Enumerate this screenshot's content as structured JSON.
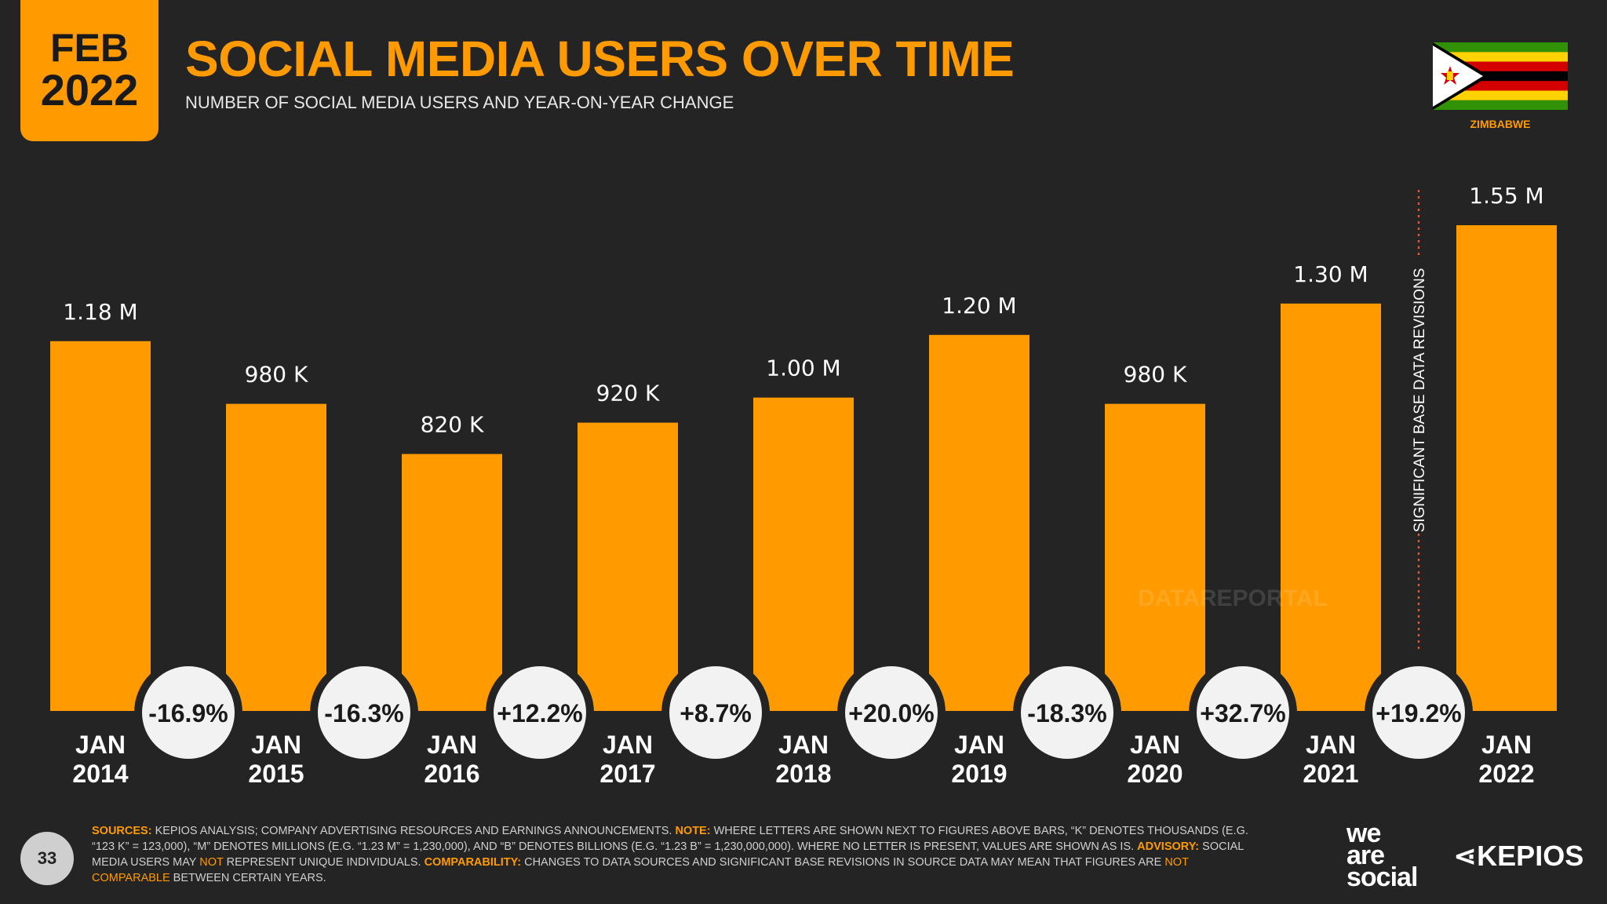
{
  "header": {
    "month": "FEB",
    "year": "2022",
    "title": "SOCIAL MEDIA USERS OVER TIME",
    "subtitle": "NUMBER OF SOCIAL MEDIA USERS AND YEAR-ON-YEAR CHANGE",
    "country": "ZIMBABWE"
  },
  "colors": {
    "accent": "#FF9A00",
    "background": "#242424",
    "bubble": "#F2F2F2"
  },
  "chart_data": {
    "type": "bar",
    "title": "SOCIAL MEDIA USERS OVER TIME",
    "subtitle": "NUMBER OF SOCIAL MEDIA USERS AND YEAR-ON-YEAR CHANGE",
    "categories": [
      {
        "month": "JAN",
        "year": "2014"
      },
      {
        "month": "JAN",
        "year": "2015"
      },
      {
        "month": "JAN",
        "year": "2016"
      },
      {
        "month": "JAN",
        "year": "2017"
      },
      {
        "month": "JAN",
        "year": "2018"
      },
      {
        "month": "JAN",
        "year": "2019"
      },
      {
        "month": "JAN",
        "year": "2020"
      },
      {
        "month": "JAN",
        "year": "2021"
      },
      {
        "month": "JAN",
        "year": "2022"
      }
    ],
    "values": [
      1180000,
      980000,
      820000,
      920000,
      1000000,
      1200000,
      980000,
      1300000,
      1550000
    ],
    "value_labels": [
      "1.18 M",
      "980 K",
      "820 K",
      "920 K",
      "1.00 M",
      "1.20 M",
      "980 K",
      "1.30 M",
      "1.55 M"
    ],
    "yoy_changes": [
      "-16.9%",
      "-16.3%",
      "+12.2%",
      "+8.7%",
      "+20.0%",
      "-18.3%",
      "+32.7%",
      "+19.2%"
    ],
    "ylim": [
      0,
      1550000
    ],
    "revision_annotation": {
      "after_index": 7,
      "label": "SIGNIFICANT BASE DATA REVISIONS"
    },
    "watermark": "DATAREPORTAL"
  },
  "footer": {
    "page_number": "33",
    "sources_label": "SOURCES:",
    "sources_text": " KEPIOS ANALYSIS; COMPANY ADVERTISING RESOURCES AND EARNINGS ANNOUNCEMENTS. ",
    "note_label": "NOTE:",
    "note_text": " WHERE LETTERS ARE SHOWN NEXT TO FIGURES ABOVE BARS, “K” DENOTES THOUSANDS (E.G. “123 K” = 123,000), “M” DENOTES MILLIONS (E.G. “1.23 M” = 1,230,000), AND “B” DENOTES BILLIONS (E.G. “1.23 B” = 1,230,000,000). WHERE NO LETTER IS PRESENT, VALUES ARE SHOWN AS IS. ",
    "advisory_label": "ADVISORY:",
    "advisory_text_1": " SOCIAL MEDIA USERS MAY ",
    "advisory_not": "NOT",
    "advisory_text_2": " REPRESENT UNIQUE INDIVIDUALS. ",
    "comparability_label": "COMPARABILITY:",
    "comparability_text": " CHANGES TO DATA SOURCES AND SIGNIFICANT BASE REVISIONS IN SOURCE DATA MAY MEAN THAT FIGURES ARE ",
    "comparability_not": "NOT",
    "comparability_comparable": "COMPARABLE",
    "comparability_end": " BETWEEN CERTAIN YEARS."
  },
  "brands": {
    "we_are_social_1": "we",
    "we_are_social_2": "are",
    "we_are_social_3": "social",
    "kepios": "KEPIOS"
  }
}
